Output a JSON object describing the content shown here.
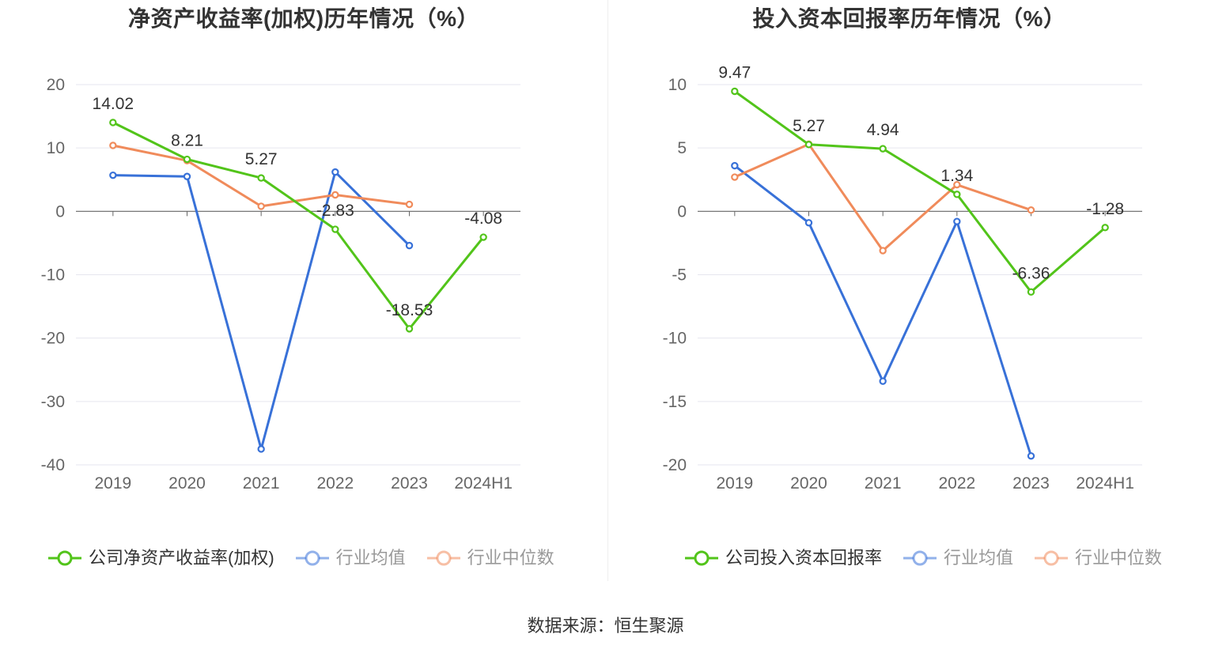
{
  "footer": {
    "source": "数据来源：恒生聚源"
  },
  "colors": {
    "company": "#52c41a",
    "average": "#3871d8",
    "median": "#f08b5b",
    "axis": "#666666",
    "grid": "#e6e6ef",
    "text": "#333333"
  },
  "chart_data": [
    {
      "type": "line",
      "title": "净资产收益率(加权)历年情况（%）",
      "xlabel": "",
      "ylabel": "",
      "categories": [
        "2019",
        "2020",
        "2021",
        "2022",
        "2023",
        "2024H1"
      ],
      "ylim": [
        -40,
        20
      ],
      "yticks": [
        20,
        10,
        0,
        -10,
        -20,
        -30,
        -40
      ],
      "grid": true,
      "legend_position": "bottom",
      "series": [
        {
          "name": "公司净资产收益率(加权)",
          "color": "#52c41a",
          "values": [
            14.02,
            8.21,
            5.27,
            -2.83,
            -18.53,
            -4.08
          ],
          "labels": [
            "14.02",
            "8.21",
            "5.27",
            "-2.83",
            "-18.53",
            "-4.08"
          ]
        },
        {
          "name": "行业均值",
          "color": "#3871d8",
          "values": [
            5.7,
            5.5,
            -37.5,
            6.2,
            -5.4,
            null
          ]
        },
        {
          "name": "行业中位数",
          "color": "#f08b5b",
          "values": [
            10.4,
            8.0,
            0.8,
            2.6,
            1.1,
            null
          ]
        }
      ]
    },
    {
      "type": "line",
      "title": "投入资本回报率历年情况（%）",
      "xlabel": "",
      "ylabel": "",
      "categories": [
        "2019",
        "2020",
        "2021",
        "2022",
        "2023",
        "2024H1"
      ],
      "ylim": [
        -20,
        10
      ],
      "yticks": [
        10,
        5,
        0,
        -5,
        -10,
        -15,
        -20
      ],
      "grid": true,
      "legend_position": "bottom",
      "series": [
        {
          "name": "公司投入资本回报率",
          "color": "#52c41a",
          "values": [
            9.47,
            5.27,
            4.94,
            1.34,
            -6.36,
            -1.28
          ],
          "labels": [
            "9.47",
            "5.27",
            "4.94",
            "1.34",
            "-6.36",
            "-1.28"
          ]
        },
        {
          "name": "行业均值",
          "color": "#3871d8",
          "values": [
            3.6,
            -0.9,
            -13.4,
            -0.8,
            -19.3,
            null
          ]
        },
        {
          "name": "行业中位数",
          "color": "#f08b5b",
          "values": [
            2.7,
            5.3,
            -3.1,
            2.1,
            0.1,
            null
          ]
        }
      ]
    }
  ]
}
